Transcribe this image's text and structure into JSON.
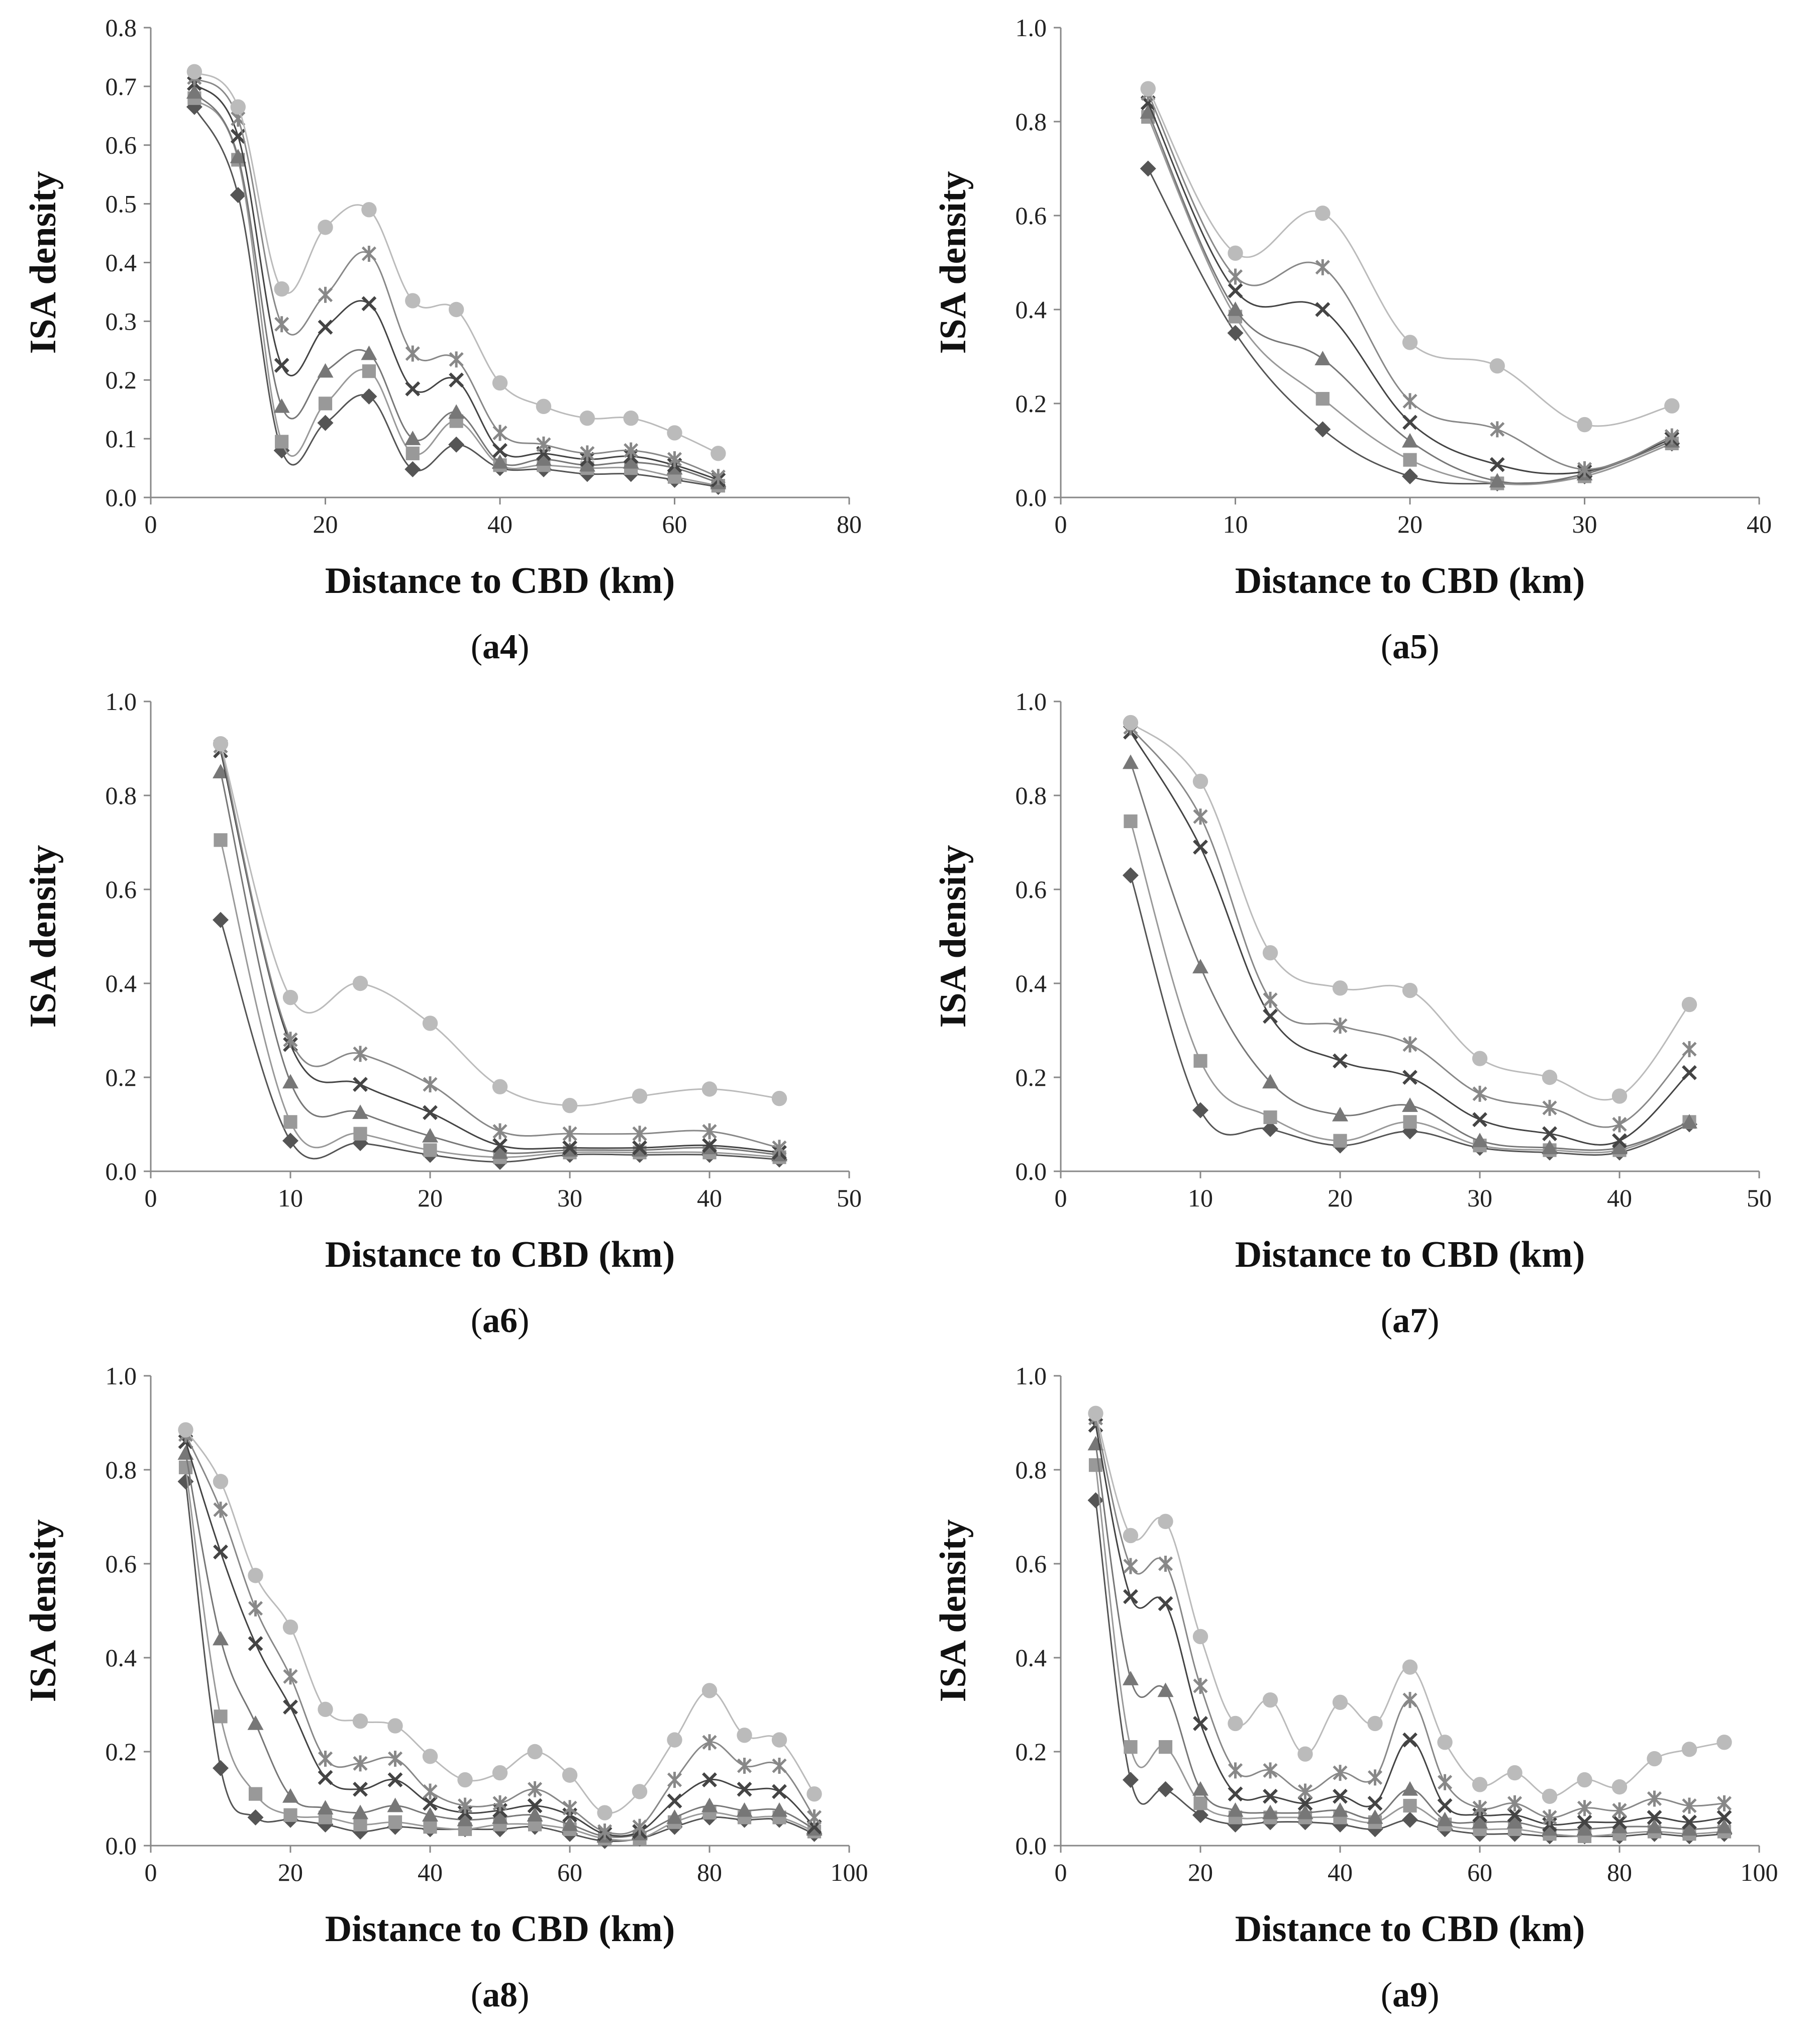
{
  "chart_data": [
    {
      "type": "line",
      "label": "a4",
      "xlabel": "Distance to CBD (km)",
      "ylabel": "ISA density",
      "xlim": [
        0,
        80
      ],
      "xticks": [
        0,
        20,
        40,
        60,
        80
      ],
      "ylim": [
        0,
        0.8
      ],
      "yticks": [
        0.0,
        0.1,
        0.2,
        0.3,
        0.4,
        0.5,
        0.6,
        0.7,
        0.8
      ],
      "ydecimals": 1,
      "x": [
        5,
        10,
        15,
        20,
        25,
        30,
        35,
        40,
        45,
        50,
        55,
        60,
        65
      ],
      "series": [
        {
          "name": "diamond",
          "marker": "diamond",
          "color": "#555555",
          "values": [
            0.665,
            0.515,
            0.08,
            0.127,
            0.172,
            0.048,
            0.09,
            0.05,
            0.048,
            0.04,
            0.04,
            0.03,
            0.018
          ]
        },
        {
          "name": "square",
          "marker": "square",
          "color": "#999999",
          "values": [
            0.68,
            0.575,
            0.095,
            0.16,
            0.215,
            0.075,
            0.13,
            0.055,
            0.055,
            0.05,
            0.05,
            0.035,
            0.02
          ]
        },
        {
          "name": "triangle",
          "marker": "triangle",
          "color": "#777777",
          "values": [
            0.69,
            0.58,
            0.155,
            0.215,
            0.245,
            0.1,
            0.145,
            0.06,
            0.065,
            0.055,
            0.06,
            0.05,
            0.025
          ]
        },
        {
          "name": "x",
          "marker": "x",
          "color": "#444444",
          "values": [
            0.705,
            0.615,
            0.225,
            0.29,
            0.33,
            0.185,
            0.2,
            0.08,
            0.075,
            0.065,
            0.07,
            0.055,
            0.03
          ]
        },
        {
          "name": "asterisk",
          "marker": "asterisk",
          "color": "#888888",
          "values": [
            0.715,
            0.645,
            0.295,
            0.345,
            0.415,
            0.245,
            0.235,
            0.11,
            0.09,
            0.075,
            0.08,
            0.065,
            0.035
          ]
        },
        {
          "name": "circle",
          "marker": "circle",
          "color": "#bbbbbb",
          "values": [
            0.725,
            0.665,
            0.355,
            0.46,
            0.49,
            0.335,
            0.32,
            0.195,
            0.155,
            0.135,
            0.135,
            0.11,
            0.075
          ]
        }
      ]
    },
    {
      "type": "line",
      "label": "a5",
      "xlabel": "Distance to CBD (km)",
      "ylabel": "ISA density",
      "xlim": [
        0,
        40
      ],
      "xticks": [
        0,
        10,
        20,
        30,
        40
      ],
      "ylim": [
        0,
        1.0
      ],
      "yticks": [
        0.0,
        0.2,
        0.4,
        0.6,
        0.8,
        1.0
      ],
      "ydecimals": 1,
      "x": [
        5,
        10,
        15,
        20,
        25,
        30,
        35
      ],
      "series": [
        {
          "name": "diamond",
          "marker": "diamond",
          "color": "#555555",
          "values": [
            0.7,
            0.35,
            0.145,
            0.045,
            0.03,
            0.045,
            0.115
          ]
        },
        {
          "name": "square",
          "marker": "square",
          "color": "#999999",
          "values": [
            0.81,
            0.385,
            0.21,
            0.08,
            0.03,
            0.045,
            0.115
          ]
        },
        {
          "name": "triangle",
          "marker": "triangle",
          "color": "#777777",
          "values": [
            0.82,
            0.4,
            0.295,
            0.12,
            0.035,
            0.05,
            0.12
          ]
        },
        {
          "name": "x",
          "marker": "x",
          "color": "#444444",
          "values": [
            0.84,
            0.44,
            0.4,
            0.16,
            0.07,
            0.055,
            0.125
          ]
        },
        {
          "name": "asterisk",
          "marker": "asterisk",
          "color": "#888888",
          "values": [
            0.86,
            0.47,
            0.49,
            0.205,
            0.145,
            0.06,
            0.13
          ]
        },
        {
          "name": "circle",
          "marker": "circle",
          "color": "#bbbbbb",
          "values": [
            0.87,
            0.52,
            0.605,
            0.33,
            0.28,
            0.155,
            0.195
          ]
        }
      ]
    },
    {
      "type": "line",
      "label": "a6",
      "xlabel": "Distance to CBD (km)",
      "ylabel": "ISA density",
      "xlim": [
        0,
        50
      ],
      "xticks": [
        0,
        10,
        20,
        30,
        40,
        50
      ],
      "ylim": [
        0,
        1.0
      ],
      "yticks": [
        0.0,
        0.2,
        0.4,
        0.6,
        0.8,
        1.0
      ],
      "ydecimals": 1,
      "x": [
        5,
        10,
        15,
        20,
        25,
        30,
        35,
        40,
        45
      ],
      "series": [
        {
          "name": "diamond",
          "marker": "diamond",
          "color": "#555555",
          "values": [
            0.535,
            0.065,
            0.06,
            0.035,
            0.02,
            0.035,
            0.035,
            0.035,
            0.025
          ]
        },
        {
          "name": "square",
          "marker": "square",
          "color": "#999999",
          "values": [
            0.705,
            0.105,
            0.08,
            0.045,
            0.03,
            0.04,
            0.04,
            0.04,
            0.03
          ]
        },
        {
          "name": "triangle",
          "marker": "triangle",
          "color": "#777777",
          "values": [
            0.85,
            0.19,
            0.125,
            0.075,
            0.04,
            0.045,
            0.045,
            0.05,
            0.035
          ]
        },
        {
          "name": "x",
          "marker": "x",
          "color": "#444444",
          "values": [
            0.895,
            0.27,
            0.185,
            0.125,
            0.055,
            0.05,
            0.05,
            0.055,
            0.04
          ]
        },
        {
          "name": "asterisk",
          "marker": "asterisk",
          "color": "#888888",
          "values": [
            0.905,
            0.28,
            0.25,
            0.185,
            0.085,
            0.08,
            0.08,
            0.085,
            0.05
          ]
        },
        {
          "name": "circle",
          "marker": "circle",
          "color": "#bbbbbb",
          "values": [
            0.91,
            0.37,
            0.4,
            0.315,
            0.18,
            0.14,
            0.16,
            0.175,
            0.155
          ]
        }
      ]
    },
    {
      "type": "line",
      "label": "a7",
      "xlabel": "Distance to CBD (km)",
      "ylabel": "ISA density",
      "xlim": [
        0,
        50
      ],
      "xticks": [
        0,
        10,
        20,
        30,
        40,
        50
      ],
      "ylim": [
        0,
        1.0
      ],
      "yticks": [
        0.0,
        0.2,
        0.4,
        0.6,
        0.8,
        1.0
      ],
      "ydecimals": 1,
      "x": [
        5,
        10,
        15,
        20,
        25,
        30,
        35,
        40,
        45
      ],
      "series": [
        {
          "name": "diamond",
          "marker": "diamond",
          "color": "#555555",
          "values": [
            0.63,
            0.13,
            0.09,
            0.055,
            0.085,
            0.05,
            0.04,
            0.04,
            0.1
          ]
        },
        {
          "name": "square",
          "marker": "square",
          "color": "#999999",
          "values": [
            0.745,
            0.235,
            0.115,
            0.065,
            0.105,
            0.055,
            0.045,
            0.045,
            0.105
          ]
        },
        {
          "name": "triangle",
          "marker": "triangle",
          "color": "#777777",
          "values": [
            0.87,
            0.435,
            0.19,
            0.12,
            0.14,
            0.065,
            0.05,
            0.05,
            0.105
          ]
        },
        {
          "name": "x",
          "marker": "x",
          "color": "#444444",
          "values": [
            0.935,
            0.69,
            0.33,
            0.235,
            0.2,
            0.11,
            0.08,
            0.065,
            0.21
          ]
        },
        {
          "name": "asterisk",
          "marker": "asterisk",
          "color": "#888888",
          "values": [
            0.945,
            0.755,
            0.365,
            0.31,
            0.27,
            0.165,
            0.135,
            0.1,
            0.26
          ]
        },
        {
          "name": "circle",
          "marker": "circle",
          "color": "#bbbbbb",
          "values": [
            0.955,
            0.83,
            0.465,
            0.39,
            0.385,
            0.24,
            0.2,
            0.16,
            0.355
          ]
        }
      ]
    },
    {
      "type": "line",
      "label": "a8",
      "xlabel": "Distance to CBD (km)",
      "ylabel": "ISA density",
      "xlim": [
        0,
        100
      ],
      "xticks": [
        0,
        20,
        40,
        60,
        80,
        100
      ],
      "ylim": [
        0,
        1.0
      ],
      "yticks": [
        0.0,
        0.2,
        0.4,
        0.6,
        0.8,
        1.0
      ],
      "ydecimals": 1,
      "x": [
        5,
        10,
        15,
        20,
        25,
        30,
        35,
        40,
        45,
        50,
        55,
        60,
        65,
        70,
        75,
        80,
        85,
        90,
        95
      ],
      "series": [
        {
          "name": "diamond",
          "marker": "diamond",
          "color": "#555555",
          "values": [
            0.775,
            0.165,
            0.06,
            0.055,
            0.045,
            0.03,
            0.04,
            0.035,
            0.035,
            0.035,
            0.04,
            0.025,
            0.01,
            0.015,
            0.04,
            0.06,
            0.055,
            0.055,
            0.025
          ]
        },
        {
          "name": "square",
          "marker": "square",
          "color": "#999999",
          "values": [
            0.805,
            0.275,
            0.11,
            0.065,
            0.06,
            0.045,
            0.05,
            0.04,
            0.035,
            0.045,
            0.045,
            0.035,
            0.015,
            0.015,
            0.05,
            0.07,
            0.06,
            0.06,
            0.03
          ]
        },
        {
          "name": "triangle",
          "marker": "triangle",
          "color": "#777777",
          "values": [
            0.835,
            0.44,
            0.26,
            0.105,
            0.08,
            0.07,
            0.085,
            0.065,
            0.055,
            0.06,
            0.065,
            0.045,
            0.02,
            0.025,
            0.06,
            0.085,
            0.075,
            0.075,
            0.035
          ]
        },
        {
          "name": "x",
          "marker": "x",
          "color": "#444444",
          "values": [
            0.86,
            0.625,
            0.43,
            0.295,
            0.145,
            0.12,
            0.14,
            0.09,
            0.07,
            0.075,
            0.085,
            0.065,
            0.025,
            0.03,
            0.095,
            0.14,
            0.12,
            0.115,
            0.04
          ]
        },
        {
          "name": "asterisk",
          "marker": "asterisk",
          "color": "#888888",
          "values": [
            0.875,
            0.715,
            0.505,
            0.36,
            0.185,
            0.175,
            0.185,
            0.115,
            0.085,
            0.09,
            0.12,
            0.08,
            0.03,
            0.04,
            0.14,
            0.22,
            0.17,
            0.17,
            0.06
          ]
        },
        {
          "name": "circle",
          "marker": "circle",
          "color": "#bbbbbb",
          "values": [
            0.885,
            0.775,
            0.575,
            0.465,
            0.29,
            0.265,
            0.255,
            0.19,
            0.14,
            0.155,
            0.2,
            0.15,
            0.07,
            0.115,
            0.225,
            0.33,
            0.235,
            0.225,
            0.11
          ]
        }
      ]
    },
    {
      "type": "line",
      "label": "a9",
      "xlabel": "Distance to CBD (km)",
      "ylabel": "ISA density",
      "xlim": [
        0,
        100
      ],
      "xticks": [
        0,
        20,
        40,
        60,
        80,
        100
      ],
      "ylim": [
        0,
        1.0
      ],
      "yticks": [
        0.0,
        0.2,
        0.4,
        0.6,
        0.8,
        1.0
      ],
      "ydecimals": 1,
      "x": [
        5,
        10,
        15,
        20,
        25,
        30,
        35,
        40,
        45,
        50,
        55,
        60,
        65,
        70,
        75,
        80,
        85,
        90,
        95
      ],
      "series": [
        {
          "name": "diamond",
          "marker": "diamond",
          "color": "#555555",
          "values": [
            0.735,
            0.14,
            0.12,
            0.065,
            0.045,
            0.05,
            0.05,
            0.045,
            0.035,
            0.055,
            0.035,
            0.025,
            0.025,
            0.02,
            0.02,
            0.02,
            0.025,
            0.02,
            0.025
          ]
        },
        {
          "name": "square",
          "marker": "square",
          "color": "#999999",
          "values": [
            0.81,
            0.21,
            0.21,
            0.09,
            0.06,
            0.06,
            0.06,
            0.06,
            0.05,
            0.085,
            0.045,
            0.035,
            0.035,
            0.025,
            0.02,
            0.025,
            0.03,
            0.025,
            0.03
          ]
        },
        {
          "name": "triangle",
          "marker": "triangle",
          "color": "#777777",
          "values": [
            0.855,
            0.355,
            0.33,
            0.12,
            0.075,
            0.07,
            0.07,
            0.075,
            0.06,
            0.12,
            0.055,
            0.05,
            0.05,
            0.035,
            0.035,
            0.04,
            0.04,
            0.035,
            0.04
          ]
        },
        {
          "name": "x",
          "marker": "x",
          "color": "#444444",
          "values": [
            0.895,
            0.53,
            0.515,
            0.26,
            0.11,
            0.105,
            0.09,
            0.105,
            0.09,
            0.225,
            0.085,
            0.065,
            0.065,
            0.045,
            0.05,
            0.05,
            0.06,
            0.05,
            0.06
          ]
        },
        {
          "name": "asterisk",
          "marker": "asterisk",
          "color": "#888888",
          "values": [
            0.91,
            0.595,
            0.6,
            0.34,
            0.16,
            0.16,
            0.115,
            0.155,
            0.145,
            0.31,
            0.135,
            0.08,
            0.09,
            0.06,
            0.08,
            0.075,
            0.1,
            0.085,
            0.09
          ]
        },
        {
          "name": "circle",
          "marker": "circle",
          "color": "#bbbbbb",
          "values": [
            0.92,
            0.66,
            0.69,
            0.445,
            0.26,
            0.31,
            0.195,
            0.305,
            0.26,
            0.38,
            0.22,
            0.13,
            0.155,
            0.105,
            0.14,
            0.125,
            0.185,
            0.205,
            0.22
          ]
        }
      ]
    }
  ]
}
